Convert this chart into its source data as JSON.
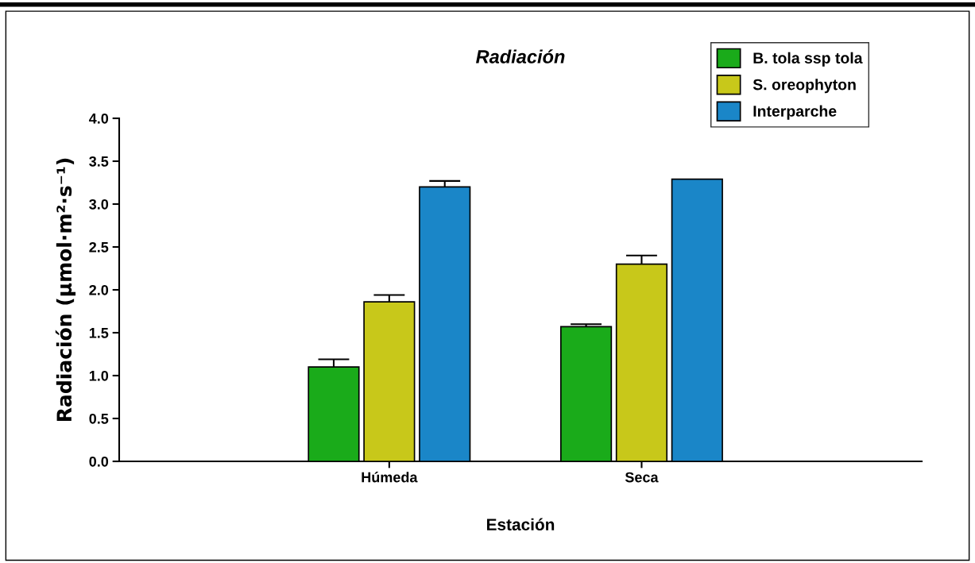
{
  "chart_data": {
    "type": "bar",
    "title": "Radiación",
    "xlabel": "Estación",
    "ylabel": "Radiación (µmol·m²·s⁻¹)",
    "categories": [
      "Húmeda",
      "Seca"
    ],
    "series": [
      {
        "name": "B. tola ssp tola",
        "color": "#1aab1a",
        "values": [
          1.1,
          1.57
        ],
        "errors": [
          0.09,
          0.03
        ]
      },
      {
        "name": "S. oreophyton",
        "color": "#c8c81a",
        "values": [
          1.86,
          2.3
        ],
        "errors": [
          0.08,
          0.1
        ]
      },
      {
        "name": "Interparche",
        "color": "#1a86c8",
        "values": [
          3.2,
          3.29
        ],
        "errors": [
          0.07,
          null
        ]
      }
    ],
    "ylim": [
      0,
      4
    ],
    "yticks": [
      {
        "value": 0,
        "label": "0.0"
      },
      0.5,
      {
        "value": 1,
        "label": "1.0"
      },
      1.5,
      {
        "value": 2,
        "label": "2.0"
      },
      2.5,
      {
        "value": 3,
        "label": "3.0"
      },
      3.5,
      {
        "value": 4,
        "label": "4.0"
      }
    ],
    "grid": false,
    "legend": "top right"
  }
}
